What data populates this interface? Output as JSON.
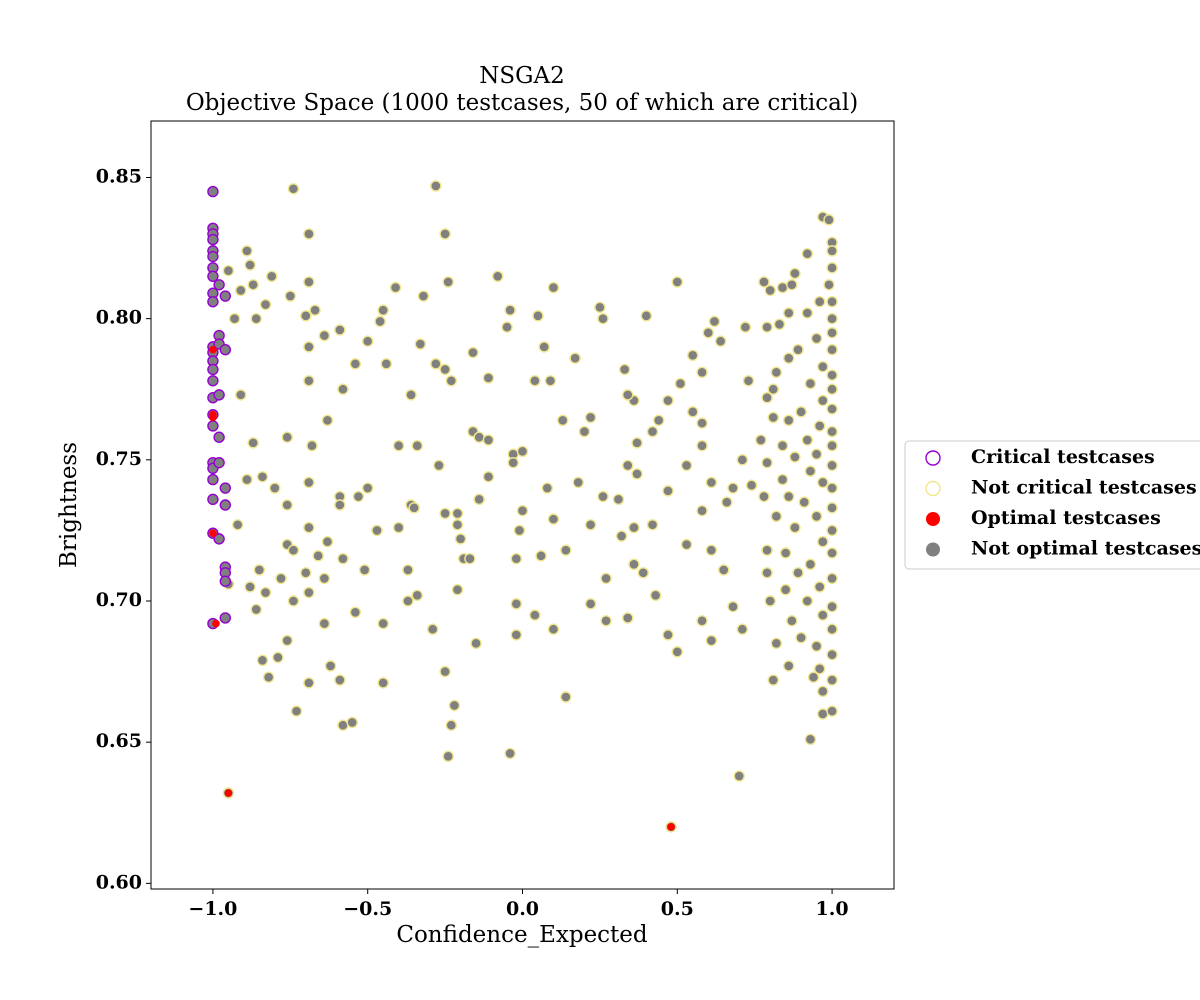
{
  "chart_data": {
    "type": "scatter",
    "title": "NSGA2",
    "subtitle": "Objective Space (1000 testcases, 50 of which are critical)",
    "x_label": "Confidence_Expected",
    "y_label": "Brightness",
    "xlim": [
      -1.2,
      1.2
    ],
    "ylim": [
      0.598,
      0.87
    ],
    "xticks": [
      {
        "value": -1.0,
        "label": "−1.0"
      },
      {
        "value": -0.5,
        "label": "−0.5"
      },
      {
        "value": 0.0,
        "label": "0.0"
      },
      {
        "value": 0.5,
        "label": "0.5"
      },
      {
        "value": 1.0,
        "label": "1.0"
      }
    ],
    "yticks": [
      {
        "value": 0.6,
        "label": "0.60"
      },
      {
        "value": 0.65,
        "label": "0.65"
      },
      {
        "value": 0.7,
        "label": "0.70"
      },
      {
        "value": 0.75,
        "label": "0.75"
      },
      {
        "value": 0.8,
        "label": "0.80"
      },
      {
        "value": 0.85,
        "label": "0.85"
      }
    ],
    "grid": false,
    "legend": "center right outside",
    "series": [
      {
        "name": "Critical testcases",
        "color": "#9400d3",
        "marker": "hollow",
        "x": [
          -1.0,
          -1.0,
          -1.0,
          -1.0,
          -1.0,
          -1.0,
          -1.0,
          -1.0,
          -1.0,
          -1.0,
          -1.0,
          -1.0,
          -1.0,
          -1.0,
          -1.0,
          -1.0,
          -1.0,
          -1.0,
          -1.0,
          -1.0,
          -1.0,
          -1.0,
          -1.0,
          -1.0,
          -0.98,
          -0.98,
          -0.98,
          -0.98,
          -0.98,
          -0.98,
          -0.98,
          -0.96,
          -0.96,
          -0.96,
          -0.96,
          -0.96,
          -0.96,
          -0.96,
          -0.96
        ],
        "values": [
          0.845,
          0.832,
          0.83,
          0.828,
          0.824,
          0.822,
          0.818,
          0.815,
          0.809,
          0.806,
          0.79,
          0.788,
          0.785,
          0.782,
          0.778,
          0.772,
          0.766,
          0.762,
          0.749,
          0.747,
          0.743,
          0.736,
          0.724,
          0.692,
          0.812,
          0.794,
          0.791,
          0.773,
          0.758,
          0.749,
          0.722,
          0.808,
          0.789,
          0.74,
          0.734,
          0.712,
          0.71,
          0.707,
          0.694
        ]
      },
      {
        "name": "Not critical testcases",
        "color": "#f0e68c",
        "marker": "hollow",
        "x": [
          -0.74,
          -0.28,
          -0.25,
          -0.69,
          -0.89,
          -0.88,
          -0.95,
          -0.81,
          -0.69,
          -0.24,
          -0.08,
          0.1,
          0.5,
          -0.41,
          -0.87,
          -0.91,
          -0.75,
          -0.32,
          -0.45,
          -0.67,
          -0.83,
          -0.7,
          -0.86,
          0.25,
          -0.04,
          0.05,
          0.4,
          0.62,
          -0.46,
          -0.59,
          -0.05,
          0.26,
          -0.93,
          -0.5,
          -0.33,
          -0.64,
          -0.16,
          -0.69,
          0.07,
          0.17,
          0.55,
          0.64,
          0.6,
          0.72,
          -0.28,
          -0.44,
          -0.54,
          -0.23,
          -0.25,
          -0.58,
          -0.69,
          -0.11,
          0.04,
          0.09,
          0.33,
          0.51,
          0.58,
          0.73,
          -0.36,
          0.36,
          0.34,
          0.47,
          -0.91,
          -0.63,
          0.13,
          0.44,
          0.58,
          -0.87,
          -0.76,
          -0.16,
          -0.14,
          -0.11,
          0.22,
          0.37,
          0.42,
          0.55,
          -0.68,
          -0.4,
          -0.34,
          -0.03,
          0.0,
          0.2,
          0.58,
          0.71,
          -0.89,
          -0.84,
          -0.69,
          -0.5,
          -0.8,
          -0.27,
          -0.11,
          -0.03,
          0.08,
          0.18,
          0.26,
          0.34,
          0.37,
          0.47,
          0.53,
          0.61,
          0.68,
          0.74,
          -0.59,
          -0.53,
          -0.59,
          -0.36,
          -0.35,
          -0.14,
          -0.76,
          0.0,
          0.31,
          0.22,
          0.36,
          0.42,
          0.58,
          0.66,
          -0.92,
          -0.69,
          -0.47,
          -0.25,
          -0.21,
          -0.21,
          -0.01,
          0.1,
          -0.63,
          -0.76,
          -0.74,
          -0.66,
          -0.4,
          -0.2,
          0.06,
          0.14,
          0.32,
          0.53,
          0.61,
          -0.95,
          -0.88,
          -0.85,
          -0.7,
          -0.58,
          -0.51,
          -0.37,
          -0.19,
          -0.17,
          -0.02,
          0.27,
          0.36,
          0.39,
          0.65,
          -0.86,
          -0.83,
          -0.78,
          -0.74,
          -0.69,
          -0.64,
          -0.54,
          -0.45,
          -0.37,
          -0.34,
          -0.21,
          -0.02,
          0.04,
          0.1,
          0.22,
          0.27,
          0.34,
          0.43,
          0.47,
          0.5,
          0.58,
          0.61,
          0.68,
          0.71,
          -0.84,
          -0.79,
          -0.76,
          -0.82,
          -0.69,
          -0.73,
          -0.62,
          -0.64,
          -0.59,
          -0.58,
          -0.55,
          -0.45,
          -0.29,
          -0.25,
          -0.22,
          -0.23,
          -0.24,
          -0.15,
          -0.02,
          -0.04,
          0.14,
          0.7,
          0.78,
          0.8,
          0.84,
          0.87,
          0.88,
          0.92,
          0.97,
          0.99,
          1.0,
          1.0,
          1.0,
          0.99,
          1.0,
          0.96,
          1.0,
          0.92,
          0.86,
          0.79,
          0.83,
          1.0,
          0.95,
          0.89,
          1.0,
          0.97,
          0.86,
          0.82,
          1.0,
          0.93,
          1.0,
          0.81,
          0.79,
          0.97,
          1.0,
          0.9,
          0.86,
          0.81,
          0.96,
          1.0,
          0.92,
          0.77,
          0.84,
          1.0,
          0.95,
          0.88,
          0.79,
          1.0,
          0.93,
          0.84,
          0.97,
          1.0,
          0.78,
          0.86,
          0.91,
          1.0,
          0.95,
          0.82,
          0.88,
          1.0,
          0.97,
          0.79,
          0.85,
          1.0,
          0.93,
          0.89,
          0.79,
          1.0,
          0.96,
          0.85,
          0.8,
          0.92,
          1.0,
          0.97,
          0.87,
          1.0,
          0.9,
          0.82,
          0.95,
          1.0,
          0.86,
          0.96,
          1.0,
          0.94,
          0.97,
          0.81,
          0.97,
          1.0,
          0.93,
          -0.95,
          0.48
        ],
        "values": [
          0.846,
          0.847,
          0.83,
          0.83,
          0.824,
          0.819,
          0.817,
          0.815,
          0.813,
          0.813,
          0.815,
          0.811,
          0.813,
          0.811,
          0.812,
          0.81,
          0.808,
          0.808,
          0.803,
          0.803,
          0.805,
          0.801,
          0.8,
          0.804,
          0.803,
          0.801,
          0.801,
          0.799,
          0.799,
          0.796,
          0.797,
          0.8,
          0.8,
          0.792,
          0.791,
          0.794,
          0.788,
          0.79,
          0.79,
          0.786,
          0.787,
          0.792,
          0.795,
          0.797,
          0.784,
          0.784,
          0.784,
          0.778,
          0.782,
          0.775,
          0.778,
          0.779,
          0.778,
          0.778,
          0.782,
          0.777,
          0.781,
          0.778,
          0.773,
          0.771,
          0.773,
          0.771,
          0.773,
          0.764,
          0.764,
          0.764,
          0.763,
          0.756,
          0.758,
          0.76,
          0.758,
          0.757,
          0.765,
          0.756,
          0.76,
          0.767,
          0.755,
          0.755,
          0.755,
          0.752,
          0.753,
          0.76,
          0.755,
          0.75,
          0.743,
          0.744,
          0.742,
          0.74,
          0.74,
          0.748,
          0.744,
          0.749,
          0.74,
          0.742,
          0.737,
          0.748,
          0.745,
          0.739,
          0.748,
          0.742,
          0.74,
          0.741,
          0.737,
          0.737,
          0.734,
          0.734,
          0.733,
          0.736,
          0.734,
          0.732,
          0.736,
          0.727,
          0.726,
          0.727,
          0.732,
          0.735,
          0.727,
          0.726,
          0.725,
          0.731,
          0.731,
          0.727,
          0.725,
          0.729,
          0.721,
          0.72,
          0.718,
          0.716,
          0.726,
          0.722,
          0.716,
          0.718,
          0.723,
          0.72,
          0.718,
          0.706,
          0.705,
          0.711,
          0.71,
          0.715,
          0.711,
          0.711,
          0.715,
          0.715,
          0.715,
          0.708,
          0.713,
          0.71,
          0.711,
          0.697,
          0.703,
          0.708,
          0.7,
          0.703,
          0.708,
          0.696,
          0.692,
          0.7,
          0.702,
          0.704,
          0.699,
          0.695,
          0.69,
          0.699,
          0.693,
          0.694,
          0.702,
          0.688,
          0.682,
          0.693,
          0.686,
          0.698,
          0.69,
          0.679,
          0.68,
          0.686,
          0.673,
          0.671,
          0.661,
          0.677,
          0.692,
          0.672,
          0.656,
          0.657,
          0.671,
          0.69,
          0.675,
          0.663,
          0.656,
          0.645,
          0.685,
          0.688,
          0.646,
          0.666,
          0.638,
          0.813,
          0.81,
          0.811,
          0.812,
          0.816,
          0.823,
          0.836,
          0.835,
          0.827,
          0.824,
          0.818,
          0.812,
          0.806,
          0.806,
          0.8,
          0.802,
          0.802,
          0.797,
          0.798,
          0.795,
          0.793,
          0.789,
          0.789,
          0.783,
          0.786,
          0.781,
          0.78,
          0.777,
          0.775,
          0.775,
          0.772,
          0.771,
          0.768,
          0.767,
          0.764,
          0.765,
          0.762,
          0.76,
          0.757,
          0.757,
          0.755,
          0.755,
          0.752,
          0.751,
          0.749,
          0.748,
          0.746,
          0.743,
          0.742,
          0.74,
          0.737,
          0.737,
          0.735,
          0.733,
          0.73,
          0.73,
          0.726,
          0.725,
          0.721,
          0.718,
          0.717,
          0.717,
          0.713,
          0.71,
          0.71,
          0.708,
          0.705,
          0.704,
          0.7,
          0.7,
          0.698,
          0.695,
          0.693,
          0.69,
          0.687,
          0.685,
          0.684,
          0.681,
          0.677,
          0.676,
          0.672,
          0.673,
          0.668,
          0.672,
          0.66,
          0.661,
          0.651,
          0.632,
          0.62
        ]
      },
      {
        "name": "Optimal testcases",
        "color": "#ff0000",
        "marker": "filled",
        "x": [
          -1.0,
          -1.0,
          -1.0,
          -1.0,
          -0.99,
          -0.95,
          0.48
        ],
        "values": [
          0.789,
          0.766,
          0.765,
          0.724,
          0.692,
          0.632,
          0.62
        ]
      },
      {
        "name": "Not optimal testcases",
        "color": "#808080",
        "marker": "filled"
      }
    ]
  }
}
